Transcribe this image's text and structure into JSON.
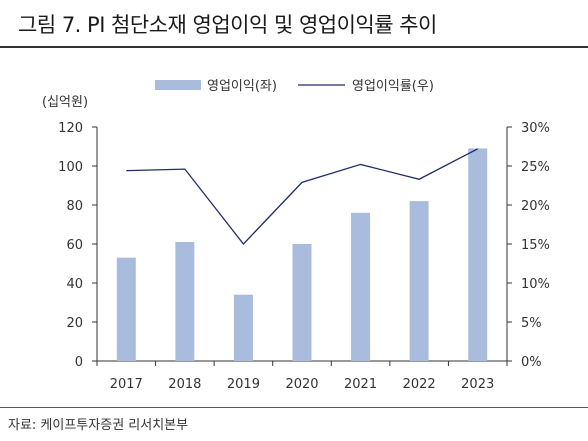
{
  "title": "그림 7. PI 첨단소재 영업이익 및 영업이익률 추이",
  "source": "자료: 케이프투자증권 리서치본부",
  "colors": {
    "bar": "#a9bcdd",
    "line": "#1f2e6b",
    "axis": "#333333"
  },
  "chart_data": {
    "type": "bar",
    "categories": [
      "2017",
      "2018",
      "2019",
      "2020",
      "2021",
      "2022",
      "2023"
    ],
    "unit_label": "(십억원)",
    "y_left": {
      "ylim": [
        0,
        120
      ],
      "ticks": [
        "0",
        "20",
        "40",
        "60",
        "80",
        "100",
        "120"
      ]
    },
    "y_right": {
      "ylim": [
        0,
        30
      ],
      "ticks": [
        "0%",
        "5%",
        "10%",
        "15%",
        "20%",
        "25%",
        "30%"
      ]
    },
    "series": [
      {
        "name": "영업이익(좌)",
        "type": "bar",
        "axis": "left",
        "values": [
          53,
          61,
          34,
          60,
          76,
          82,
          109
        ]
      },
      {
        "name": "영업이익률(우)",
        "type": "line",
        "axis": "right",
        "values": [
          24.4,
          24.6,
          15.0,
          22.9,
          25.2,
          23.3,
          27.2
        ]
      }
    ],
    "grid": false,
    "legend": "top-center"
  }
}
